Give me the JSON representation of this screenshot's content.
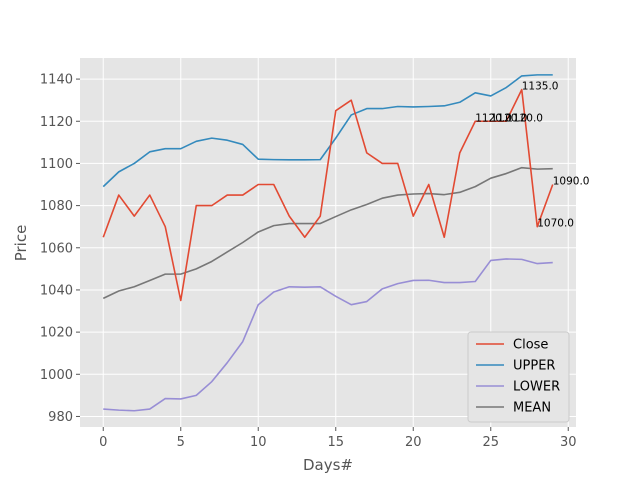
{
  "chart_data": {
    "type": "line",
    "title": "",
    "xlabel": "Days#",
    "ylabel": "Price",
    "xlim": [
      -1.5,
      30.5
    ],
    "ylim": [
      975,
      1150
    ],
    "xticks": [
      0,
      5,
      10,
      15,
      20,
      25,
      30
    ],
    "yticks": [
      980,
      1000,
      1020,
      1040,
      1060,
      1080,
      1100,
      1120,
      1140
    ],
    "grid": true,
    "legend_position": "lower-right",
    "x": [
      0,
      1,
      2,
      3,
      4,
      5,
      6,
      7,
      8,
      9,
      10,
      11,
      12,
      13,
      14,
      15,
      16,
      17,
      18,
      19,
      20,
      21,
      22,
      23,
      24,
      25,
      26,
      27,
      28,
      29
    ],
    "series": [
      {
        "name": "Close",
        "color": "#E24A33",
        "values": [
          1065,
          1085,
          1075,
          1085,
          1070,
          1035,
          1080,
          1080,
          1085,
          1085,
          1090,
          1090,
          1075,
          1065,
          1075,
          1125,
          1130,
          1105,
          1100,
          1100,
          1075,
          1090,
          1065,
          1105,
          1120,
          1120,
          1120,
          1135,
          1070,
          1090
        ]
      },
      {
        "name": "UPPER",
        "color": "#348ABD",
        "values": [
          1089,
          1096,
          1100,
          1105.5,
          1107,
          1107,
          1110.5,
          1112,
          1111,
          1109,
          1102,
          1101.8,
          1101.7,
          1101.7,
          1101.8,
          1112,
          1123,
          1126,
          1126,
          1127,
          1126.8,
          1127,
          1127.3,
          1129,
          1133.5,
          1132,
          1136,
          1141.5,
          1142,
          1142
        ]
      },
      {
        "name": "LOWER",
        "color": "#988ED5",
        "values": [
          983.5,
          983,
          982.7,
          983.5,
          988.5,
          988.3,
          990,
          996.5,
          1005.5,
          1015.5,
          1033,
          1039,
          1041.5,
          1041.3,
          1041.5,
          1037,
          1033,
          1034.5,
          1040.5,
          1043,
          1044.5,
          1044.6,
          1043.5,
          1043.5,
          1044,
          1054,
          1054.7,
          1054.5,
          1052.5,
          1053
        ]
      },
      {
        "name": "MEAN",
        "color": "#777777",
        "values": [
          1036,
          1039.5,
          1041.5,
          1044.5,
          1047.5,
          1047.5,
          1050,
          1053.5,
          1058,
          1062.5,
          1067.5,
          1070.5,
          1071.5,
          1071.5,
          1071.5,
          1074.8,
          1078,
          1080.5,
          1083.5,
          1085,
          1085.5,
          1085.7,
          1085.2,
          1086.3,
          1089,
          1093,
          1095.2,
          1098,
          1097.3,
          1097.5
        ]
      }
    ],
    "annotations": [
      {
        "x": 24,
        "y": 1120,
        "text": "1120.0"
      },
      {
        "x": 25,
        "y": 1120,
        "text": "1120.0"
      },
      {
        "x": 26,
        "y": 1120,
        "text": "1120.0"
      },
      {
        "x": 27,
        "y": 1135,
        "text": "1135.0"
      },
      {
        "x": 28,
        "y": 1070,
        "text": "1070.0"
      },
      {
        "x": 29,
        "y": 1090,
        "text": "1090.0"
      }
    ],
    "colors": {
      "plot_background": "#E5E5E5",
      "grid": "#FFFFFF",
      "tick_text": "#555555",
      "legend_background": "#E5E5E5",
      "legend_border": "#CCCCCC"
    }
  }
}
